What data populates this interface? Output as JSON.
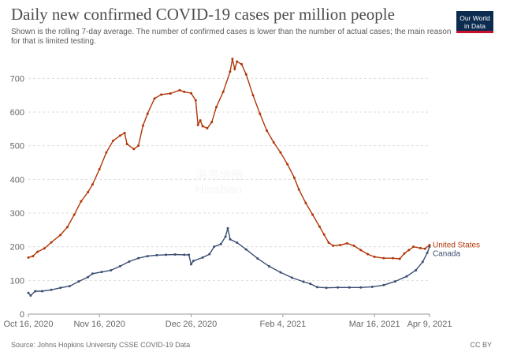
{
  "header": {
    "title": "Daily new confirmed COVID-19 cases per million people",
    "subtitle": "Shown is the rolling 7-day average. The number of confirmed cases is lower than the number of actual cases; the main reason for that is limited testing.",
    "logo_line1": "Our World",
    "logo_line2": "in Data"
  },
  "footer": {
    "source": "Source: Johns Hopkins University CSSE COVID-19 Data",
    "license": "CC BY"
  },
  "watermark": {
    "line1": "海鸟地图",
    "line2": "Hinabian"
  },
  "chart_data": {
    "type": "line",
    "title": "Daily new confirmed COVID-19 cases per million people",
    "xlabel": "",
    "ylabel": "",
    "x_range": [
      0,
      175
    ],
    "ylim": [
      0,
      750
    ],
    "yticks": [
      0,
      100,
      200,
      300,
      400,
      500,
      600,
      700
    ],
    "xticks": [
      {
        "x": 0,
        "label": "Oct 16, 2020"
      },
      {
        "x": 31,
        "label": "Nov 16, 2020"
      },
      {
        "x": 71,
        "label": "Dec 26, 2020"
      },
      {
        "x": 111,
        "label": "Feb 4, 2021"
      },
      {
        "x": 151,
        "label": "Mar 16, 2021"
      },
      {
        "x": 175,
        "label": "Apr 9, 2021"
      }
    ],
    "grid": true,
    "series": [
      {
        "name": "Canada",
        "color": "#3c4e74",
        "points": [
          [
            0,
            63
          ],
          [
            1,
            55
          ],
          [
            3,
            68
          ],
          [
            6,
            68
          ],
          [
            10,
            72
          ],
          [
            14,
            78
          ],
          [
            18,
            83
          ],
          [
            22,
            97
          ],
          [
            26,
            110
          ],
          [
            28,
            120
          ],
          [
            32,
            125
          ],
          [
            36,
            130
          ],
          [
            40,
            142
          ],
          [
            44,
            156
          ],
          [
            48,
            166
          ],
          [
            52,
            172
          ],
          [
            56,
            175
          ],
          [
            60,
            176
          ],
          [
            64,
            177
          ],
          [
            68,
            176
          ],
          [
            70,
            176
          ],
          [
            71,
            148
          ],
          [
            72,
            158
          ],
          [
            76,
            168
          ],
          [
            79,
            178
          ],
          [
            81,
            200
          ],
          [
            84,
            208
          ],
          [
            86,
            230
          ],
          [
            87,
            255
          ],
          [
            88,
            222
          ],
          [
            91,
            212
          ],
          [
            95,
            192
          ],
          [
            100,
            165
          ],
          [
            105,
            142
          ],
          [
            110,
            124
          ],
          [
            115,
            108
          ],
          [
            120,
            96
          ],
          [
            123,
            90
          ],
          [
            126,
            80
          ],
          [
            130,
            78
          ],
          [
            135,
            79
          ],
          [
            140,
            79
          ],
          [
            145,
            79
          ],
          [
            150,
            81
          ],
          [
            155,
            86
          ],
          [
            160,
            97
          ],
          [
            165,
            112
          ],
          [
            169,
            130
          ],
          [
            172,
            155
          ],
          [
            174,
            182
          ],
          [
            175,
            200
          ]
        ]
      },
      {
        "name": "United States",
        "color": "#b13507",
        "points": [
          [
            0,
            168
          ],
          [
            2,
            172
          ],
          [
            4,
            185
          ],
          [
            7,
            195
          ],
          [
            10,
            213
          ],
          [
            14,
            235
          ],
          [
            17,
            258
          ],
          [
            20,
            295
          ],
          [
            23,
            335
          ],
          [
            26,
            362
          ],
          [
            28,
            385
          ],
          [
            31,
            430
          ],
          [
            34,
            480
          ],
          [
            37,
            515
          ],
          [
            40,
            530
          ],
          [
            42,
            538
          ],
          [
            43,
            505
          ],
          [
            46,
            490
          ],
          [
            48,
            500
          ],
          [
            50,
            560
          ],
          [
            52,
            595
          ],
          [
            55,
            640
          ],
          [
            58,
            652
          ],
          [
            62,
            655
          ],
          [
            66,
            665
          ],
          [
            68,
            660
          ],
          [
            71,
            656
          ],
          [
            73,
            635
          ],
          [
            74,
            562
          ],
          [
            75,
            575
          ],
          [
            76,
            558
          ],
          [
            78,
            552
          ],
          [
            80,
            570
          ],
          [
            82,
            615
          ],
          [
            85,
            660
          ],
          [
            88,
            720
          ],
          [
            89,
            758
          ],
          [
            90,
            728
          ],
          [
            91,
            750
          ],
          [
            93,
            742
          ],
          [
            95,
            712
          ],
          [
            98,
            650
          ],
          [
            101,
            595
          ],
          [
            104,
            545
          ],
          [
            107,
            510
          ],
          [
            110,
            480
          ],
          [
            113,
            445
          ],
          [
            116,
            405
          ],
          [
            118,
            370
          ],
          [
            121,
            330
          ],
          [
            124,
            295
          ],
          [
            127,
            260
          ],
          [
            129,
            236
          ],
          [
            131,
            212
          ],
          [
            133,
            203
          ],
          [
            136,
            205
          ],
          [
            139,
            210
          ],
          [
            142,
            203
          ],
          [
            145,
            190
          ],
          [
            148,
            178
          ],
          [
            151,
            170
          ],
          [
            155,
            166
          ],
          [
            159,
            166
          ],
          [
            162,
            164
          ],
          [
            164,
            180
          ],
          [
            166,
            190
          ],
          [
            168,
            200
          ],
          [
            171,
            196
          ],
          [
            173,
            194
          ],
          [
            175,
            205
          ]
        ]
      }
    ]
  }
}
